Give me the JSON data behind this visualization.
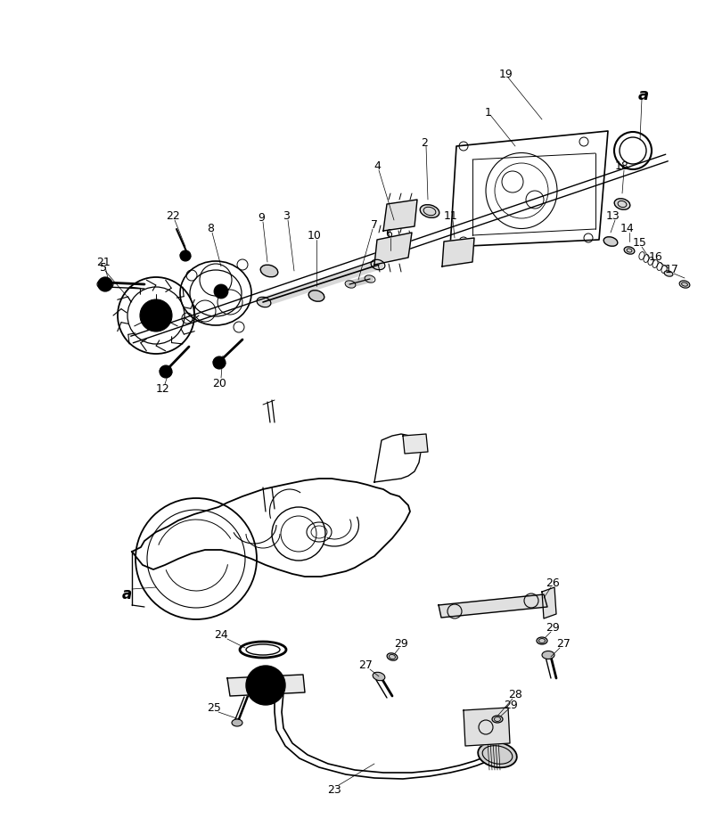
{
  "bg_color": "#ffffff",
  "line_color": "#000000",
  "fig_width": 7.92,
  "fig_height": 9.29,
  "dpi": 100
}
